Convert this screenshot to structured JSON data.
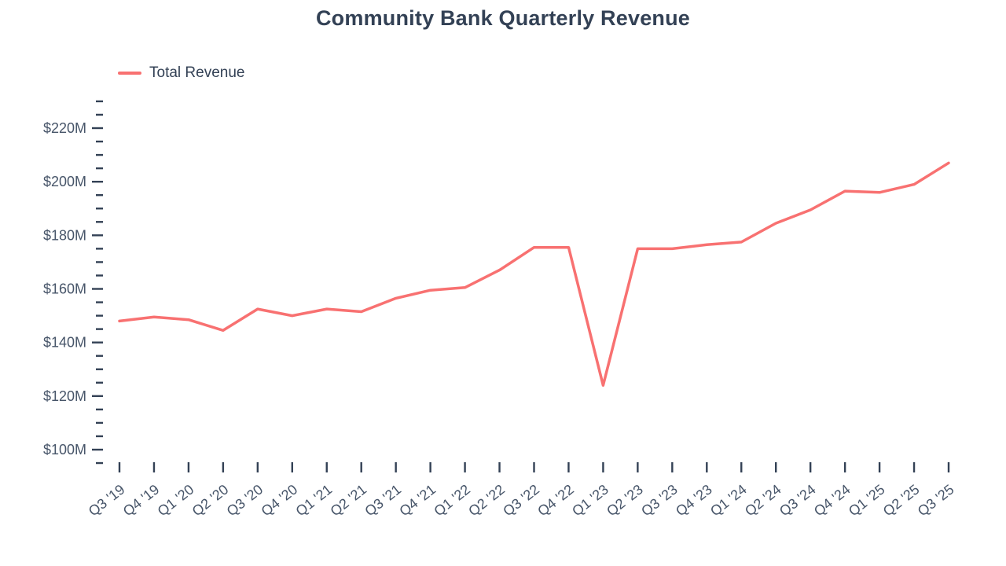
{
  "chart_data": {
    "type": "line",
    "title": "Community Bank Quarterly Revenue",
    "xlabel": "",
    "ylabel": "",
    "grid": false,
    "legend_position": "top-left",
    "categories": [
      "Q3 '19",
      "Q4 '19",
      "Q1 '20",
      "Q2 '20",
      "Q3 '20",
      "Q4 '20",
      "Q1 '21",
      "Q2 '21",
      "Q3 '21",
      "Q4 '21",
      "Q1 '22",
      "Q2 '22",
      "Q3 '22",
      "Q4 '22",
      "Q1 '23",
      "Q2 '23",
      "Q3 '23",
      "Q4 '23",
      "Q1 '24",
      "Q2 '24",
      "Q3 '24",
      "Q4 '24",
      "Q1 '25",
      "Q2 '25",
      "Q3 '25"
    ],
    "series": [
      {
        "name": "Total Revenue",
        "values": [
          148,
          149.5,
          148.5,
          144.5,
          152.5,
          150,
          152.5,
          151.5,
          156.5,
          159.5,
          160.5,
          167,
          175.5,
          175.5,
          124,
          175,
          175,
          176.5,
          177.5,
          184.5,
          189.5,
          196.5,
          196,
          199,
          207
        ]
      }
    ],
    "ylim": [
      100,
      220
    ],
    "yticks": [
      {
        "value": 100,
        "label": "$100M"
      },
      {
        "value": 120,
        "label": "$120M"
      },
      {
        "value": 140,
        "label": "$140M"
      },
      {
        "value": 160,
        "label": "$160M"
      },
      {
        "value": 180,
        "label": "$180M"
      },
      {
        "value": 200,
        "label": "$200M"
      },
      {
        "value": 220,
        "label": "$220M"
      }
    ],
    "minor_tick_step": 5,
    "minor_tick_range": [
      95,
      230
    ]
  },
  "colors": {
    "line": "#F87171",
    "title": "#334155",
    "axis_text": "#475569",
    "tick": "#334155"
  }
}
